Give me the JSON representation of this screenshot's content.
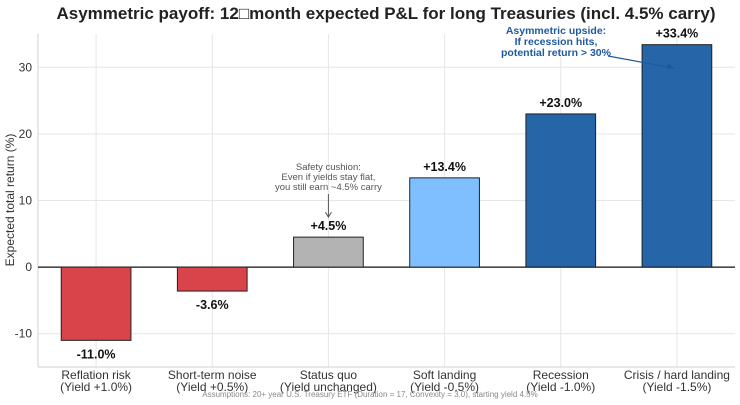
{
  "chart_data": {
    "type": "bar",
    "title": "Asymmetric payoff: 12□month expected P&L for long Treasuries (incl. 4.5% carry)",
    "xlabel": "",
    "ylabel": "Expected total return (%)",
    "ylim": [
      -15,
      35
    ],
    "yticks": [
      -10,
      0,
      10,
      20,
      30
    ],
    "grid": true,
    "categories": [
      [
        "Reflation risk",
        "(Yield +1.0%)"
      ],
      [
        "Short-term noise",
        "(Yield +0.5%)"
      ],
      [
        "Status quo",
        "(Yield unchanged)"
      ],
      [
        "Soft landing",
        "(Yield -0.5%)"
      ],
      [
        "Recession",
        "(Yield -1.0%)"
      ],
      [
        "Crisis / hard landing",
        "(Yield -1.5%)"
      ]
    ],
    "values": [
      -11.0,
      -3.6,
      4.5,
      13.4,
      23.0,
      33.4
    ],
    "value_labels": [
      "-11.0%",
      "-3.6%",
      "+4.5%",
      "+13.4%",
      "+23.0%",
      "+33.4%"
    ],
    "colors": [
      "#d9434a",
      "#d9434a",
      "#b3b3b3",
      "#7fbfff",
      "#2565a8",
      "#2565a8"
    ],
    "annotations": [
      {
        "lines": [
          "Safety cushion:",
          "Even if yields stay flat,",
          "you still earn ~4.5% carry"
        ],
        "target_category": 2,
        "target_value": 4.5,
        "style": "gray"
      },
      {
        "lines": [
          "Asymmetric upside:",
          "If recession hits,",
          "potential return > 30%"
        ],
        "target_category": 5,
        "target_value": 30,
        "style": "blue"
      }
    ],
    "footnote": "Assumptions: 20+ year U.S. Treasury ETF (Duration = 17, Convexity = 3.0), starting yield 4.5%"
  }
}
